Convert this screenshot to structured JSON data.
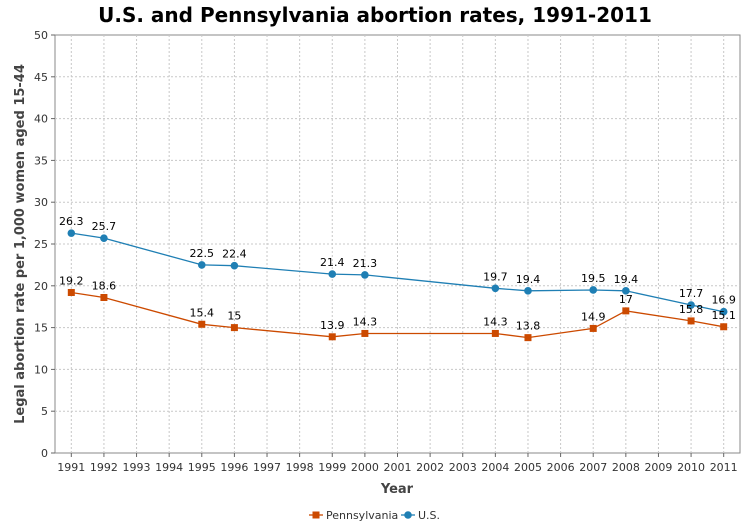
{
  "chart_data": {
    "type": "line",
    "title": "U.S. and Pennsylvania abortion rates, 1991-2011",
    "xlabel": "Year",
    "ylabel": "Legal abortion rate per 1,000 women aged 15-44",
    "x": [
      1991,
      1992,
      1993,
      1994,
      1995,
      1996,
      1997,
      1998,
      1999,
      2000,
      2001,
      2002,
      2003,
      2004,
      2005,
      2006,
      2007,
      2008,
      2009,
      2010,
      2011
    ],
    "xlim": [
      1990.5,
      2011.5
    ],
    "ylim": [
      0,
      50
    ],
    "yticks": [
      0,
      5,
      10,
      15,
      20,
      25,
      30,
      35,
      40,
      45,
      50
    ],
    "grid": true,
    "legend_position": "bottom-center",
    "series": [
      {
        "name": "Pennsylvania",
        "color": "#cc4a00",
        "marker": "square",
        "points": [
          {
            "x": 1991,
            "y": 19.2,
            "label": "19.2"
          },
          {
            "x": 1992,
            "y": 18.6,
            "label": "18.6"
          },
          {
            "x": 1995,
            "y": 15.4,
            "label": "15.4"
          },
          {
            "x": 1996,
            "y": 15,
            "label": "15"
          },
          {
            "x": 1999,
            "y": 13.9,
            "label": "13.9"
          },
          {
            "x": 2000,
            "y": 14.3,
            "label": "14.3"
          },
          {
            "x": 2004,
            "y": 14.3,
            "label": "14.3"
          },
          {
            "x": 2005,
            "y": 13.8,
            "label": "13.8"
          },
          {
            "x": 2007,
            "y": 14.9,
            "label": "14.9"
          },
          {
            "x": 2008,
            "y": 17,
            "label": "17"
          },
          {
            "x": 2010,
            "y": 15.8,
            "label": "15.8"
          },
          {
            "x": 2011,
            "y": 15.1,
            "label": "15.1"
          }
        ]
      },
      {
        "name": "U.S.",
        "color": "#1f7fb4",
        "marker": "circle",
        "points": [
          {
            "x": 1991,
            "y": 26.3,
            "label": "26.3"
          },
          {
            "x": 1992,
            "y": 25.7,
            "label": "25.7"
          },
          {
            "x": 1995,
            "y": 22.5,
            "label": "22.5"
          },
          {
            "x": 1996,
            "y": 22.4,
            "label": "22.4"
          },
          {
            "x": 1999,
            "y": 21.4,
            "label": "21.4"
          },
          {
            "x": 2000,
            "y": 21.3,
            "label": "21.3"
          },
          {
            "x": 2004,
            "y": 19.7,
            "label": "19.7"
          },
          {
            "x": 2005,
            "y": 19.4,
            "label": "19.4"
          },
          {
            "x": 2007,
            "y": 19.5,
            "label": "19.5"
          },
          {
            "x": 2008,
            "y": 19.4,
            "label": "19.4"
          },
          {
            "x": 2010,
            "y": 17.7,
            "label": "17.7"
          },
          {
            "x": 2011,
            "y": 16.9,
            "label": "16.9"
          }
        ]
      }
    ]
  }
}
